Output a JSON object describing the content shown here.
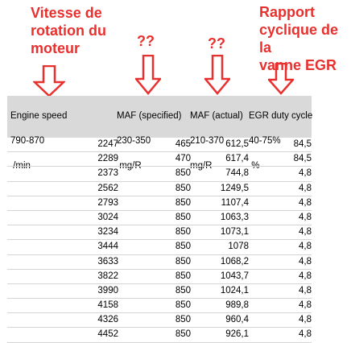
{
  "annotations": {
    "engine_speed": "Vitesse de\nrotation du\nmoteur",
    "maf_specified": "??",
    "maf_actual": "??",
    "egr_duty": "Rapport\ncyclique de la\nvanne EGR",
    "color": "#e8312f"
  },
  "table": {
    "headers": [
      {
        "name": "Engine speed",
        "range": "790-870",
        "unit": " /min"
      },
      {
        "name": "MAF (specified)",
        "range": "230-350",
        "unit": " mg/R"
      },
      {
        "name": "MAF (actual)",
        "range": "210-370",
        "unit": "mg/R"
      },
      {
        "name": "EGR duty cycle",
        "range": "40-75%",
        "unit": " %"
      }
    ],
    "rows": [
      [
        "2247",
        "465",
        "612,5",
        "84,5"
      ],
      [
        "2289",
        "470",
        "617,4",
        "84,5"
      ],
      [
        "2373",
        "850",
        "744,8",
        "4,8"
      ],
      [
        "2562",
        "850",
        "1249,5",
        "4,8"
      ],
      [
        "2793",
        "850",
        "1107,4",
        "4,8"
      ],
      [
        "3024",
        "850",
        "1063,3",
        "4,8"
      ],
      [
        "3234",
        "850",
        "1073,1",
        "4,8"
      ],
      [
        "3444",
        "850",
        "1078",
        "4,8"
      ],
      [
        "3633",
        "850",
        "1068,2",
        "4,8"
      ],
      [
        "3822",
        "850",
        "1043,7",
        "4,8"
      ],
      [
        "3990",
        "850",
        "1024,1",
        "4,8"
      ],
      [
        "4158",
        "850",
        "989,8",
        "4,8"
      ],
      [
        "4326",
        "850",
        "960,4",
        "4,8"
      ],
      [
        "4452",
        "850",
        "926,1",
        "4,8"
      ]
    ]
  }
}
